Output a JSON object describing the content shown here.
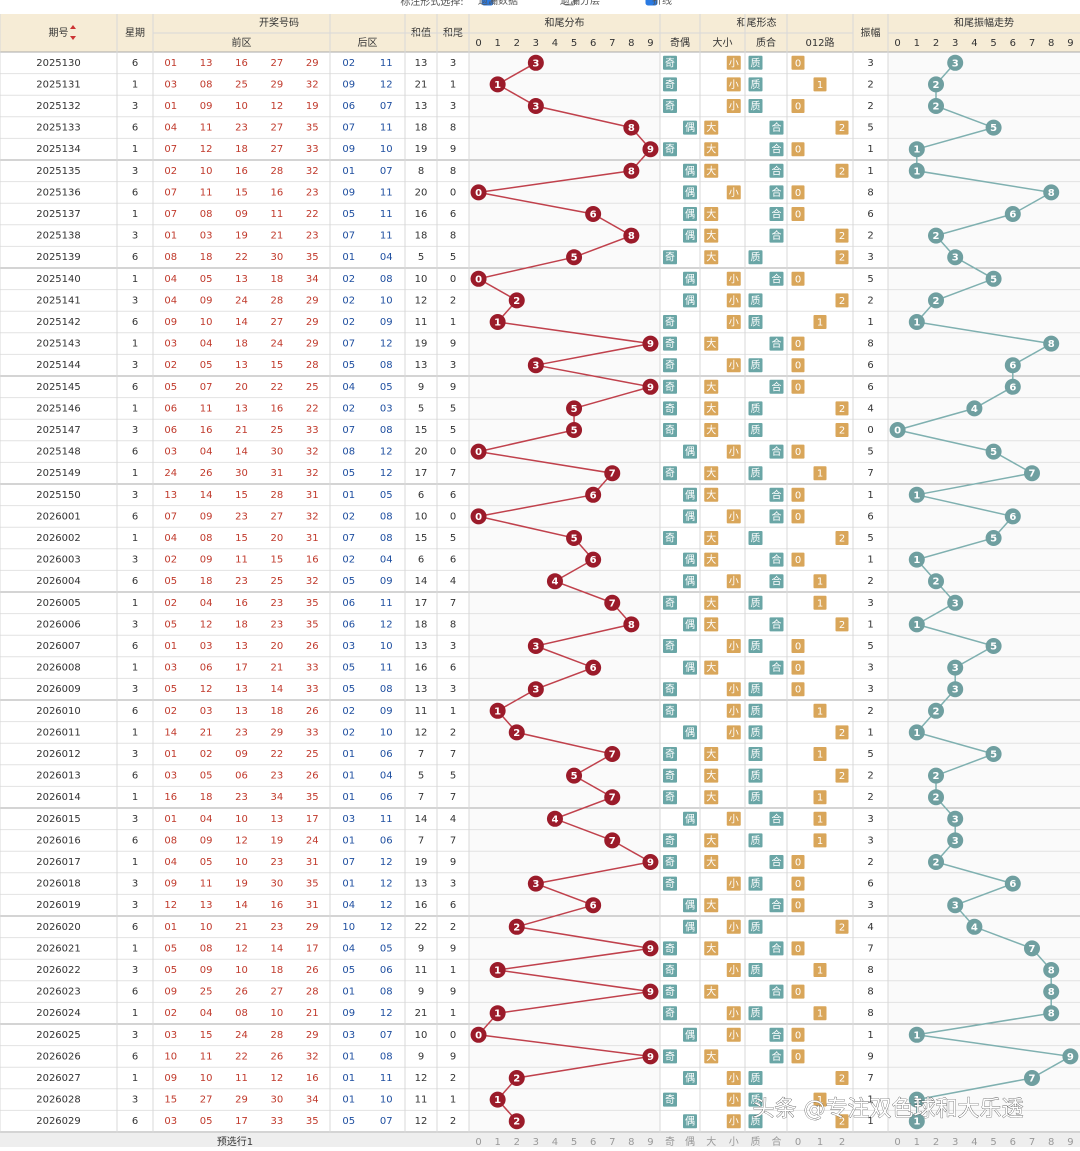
{
  "toolbar": {
    "label": "标注形式选择:",
    "options": [
      "遗漏数据",
      "遗漏分层",
      "折线"
    ],
    "checked": [
      true,
      false,
      true
    ]
  },
  "table": {
    "headers": {
      "issue": "期号",
      "weekday": "星期",
      "draw": "开奖号码",
      "front": "前区",
      "back": "后区",
      "sum": "和值",
      "tail": "和尾",
      "distribution": "和尾分布",
      "shape": "和尾形态",
      "parity": "奇偶",
      "size": "大小",
      "prime": "质合",
      "route": "012路",
      "amp": "振幅",
      "trend": "和尾振幅走势"
    },
    "digits": [
      0,
      1,
      2,
      3,
      4,
      5,
      6,
      7,
      8,
      9
    ],
    "shape_options": {
      "parity": [
        "奇",
        "偶"
      ],
      "size": [
        "大",
        "小"
      ],
      "prime": [
        "质",
        "合"
      ],
      "route": [
        0,
        1,
        2
      ]
    },
    "rows": [
      {
        "issue": "2025130",
        "weekday": 6,
        "front": [
          "01",
          "13",
          "16",
          "27",
          "29"
        ],
        "back": [
          "02",
          "11"
        ],
        "sum": 13,
        "tail": 3,
        "parity": "奇",
        "size": "小",
        "prime": "质",
        "route": 0,
        "amp": 3
      },
      {
        "issue": "2025131",
        "weekday": 1,
        "front": [
          "03",
          "08",
          "25",
          "29",
          "32"
        ],
        "back": [
          "09",
          "12"
        ],
        "sum": 21,
        "tail": 1,
        "parity": "奇",
        "size": "小",
        "prime": "质",
        "route": 1,
        "amp": 2
      },
      {
        "issue": "2025132",
        "weekday": 3,
        "front": [
          "01",
          "09",
          "10",
          "12",
          "19"
        ],
        "back": [
          "06",
          "07"
        ],
        "sum": 13,
        "tail": 3,
        "parity": "奇",
        "size": "小",
        "prime": "质",
        "route": 0,
        "amp": 2
      },
      {
        "issue": "2025133",
        "weekday": 6,
        "front": [
          "04",
          "11",
          "23",
          "27",
          "35"
        ],
        "back": [
          "07",
          "11"
        ],
        "sum": 18,
        "tail": 8,
        "parity": "偶",
        "size": "大",
        "prime": "合",
        "route": 2,
        "amp": 5
      },
      {
        "issue": "2025134",
        "weekday": 1,
        "front": [
          "07",
          "12",
          "18",
          "27",
          "33"
        ],
        "back": [
          "09",
          "10"
        ],
        "sum": 19,
        "tail": 9,
        "parity": "奇",
        "size": "大",
        "prime": "合",
        "route": 0,
        "amp": 1
      },
      {
        "issue": "2025135",
        "weekday": 3,
        "front": [
          "02",
          "10",
          "16",
          "28",
          "32"
        ],
        "back": [
          "01",
          "07"
        ],
        "sum": 8,
        "tail": 8,
        "parity": "偶",
        "size": "大",
        "prime": "合",
        "route": 2,
        "amp": 1
      },
      {
        "issue": "2025136",
        "weekday": 6,
        "front": [
          "07",
          "11",
          "15",
          "16",
          "23"
        ],
        "back": [
          "09",
          "11"
        ],
        "sum": 20,
        "tail": 0,
        "parity": "偶",
        "size": "小",
        "prime": "合",
        "route": 0,
        "amp": 8
      },
      {
        "issue": "2025137",
        "weekday": 1,
        "front": [
          "07",
          "08",
          "09",
          "11",
          "22"
        ],
        "back": [
          "05",
          "11"
        ],
        "sum": 16,
        "tail": 6,
        "parity": "偶",
        "size": "大",
        "prime": "合",
        "route": 0,
        "amp": 6
      },
      {
        "issue": "2025138",
        "weekday": 3,
        "front": [
          "01",
          "03",
          "19",
          "21",
          "23"
        ],
        "back": [
          "07",
          "11"
        ],
        "sum": 18,
        "tail": 8,
        "parity": "偶",
        "size": "大",
        "prime": "合",
        "route": 2,
        "amp": 2
      },
      {
        "issue": "2025139",
        "weekday": 6,
        "front": [
          "08",
          "18",
          "22",
          "30",
          "35"
        ],
        "back": [
          "01",
          "04"
        ],
        "sum": 5,
        "tail": 5,
        "parity": "奇",
        "size": "大",
        "prime": "质",
        "route": 2,
        "amp": 3
      },
      {
        "issue": "2025140",
        "weekday": 1,
        "front": [
          "04",
          "05",
          "13",
          "18",
          "34"
        ],
        "back": [
          "02",
          "08"
        ],
        "sum": 10,
        "tail": 0,
        "parity": "偶",
        "size": "小",
        "prime": "合",
        "route": 0,
        "amp": 5
      },
      {
        "issue": "2025141",
        "weekday": 3,
        "front": [
          "04",
          "09",
          "24",
          "28",
          "29"
        ],
        "back": [
          "02",
          "10"
        ],
        "sum": 12,
        "tail": 2,
        "parity": "偶",
        "size": "小",
        "prime": "质",
        "route": 2,
        "amp": 2
      },
      {
        "issue": "2025142",
        "weekday": 6,
        "front": [
          "09",
          "10",
          "14",
          "27",
          "29"
        ],
        "back": [
          "02",
          "09"
        ],
        "sum": 11,
        "tail": 1,
        "parity": "奇",
        "size": "小",
        "prime": "质",
        "route": 1,
        "amp": 1
      },
      {
        "issue": "2025143",
        "weekday": 1,
        "front": [
          "03",
          "04",
          "18",
          "24",
          "29"
        ],
        "back": [
          "07",
          "12"
        ],
        "sum": 19,
        "tail": 9,
        "parity": "奇",
        "size": "大",
        "prime": "合",
        "route": 0,
        "amp": 8
      },
      {
        "issue": "2025144",
        "weekday": 3,
        "front": [
          "02",
          "05",
          "13",
          "15",
          "28"
        ],
        "back": [
          "05",
          "08"
        ],
        "sum": 13,
        "tail": 3,
        "parity": "奇",
        "size": "小",
        "prime": "质",
        "route": 0,
        "amp": 6
      },
      {
        "issue": "2025145",
        "weekday": 6,
        "front": [
          "05",
          "07",
          "20",
          "22",
          "25"
        ],
        "back": [
          "04",
          "05"
        ],
        "sum": 9,
        "tail": 9,
        "parity": "奇",
        "size": "大",
        "prime": "合",
        "route": 0,
        "amp": 6
      },
      {
        "issue": "2025146",
        "weekday": 1,
        "front": [
          "06",
          "11",
          "13",
          "16",
          "22"
        ],
        "back": [
          "02",
          "03"
        ],
        "sum": 5,
        "tail": 5,
        "parity": "奇",
        "size": "大",
        "prime": "质",
        "route": 2,
        "amp": 4
      },
      {
        "issue": "2025147",
        "weekday": 3,
        "front": [
          "06",
          "16",
          "21",
          "25",
          "33"
        ],
        "back": [
          "07",
          "08"
        ],
        "sum": 15,
        "tail": 5,
        "parity": "奇",
        "size": "大",
        "prime": "质",
        "route": 2,
        "amp": 0
      },
      {
        "issue": "2025148",
        "weekday": 6,
        "front": [
          "03",
          "04",
          "14",
          "30",
          "32"
        ],
        "back": [
          "08",
          "12"
        ],
        "sum": 20,
        "tail": 0,
        "parity": "偶",
        "size": "小",
        "prime": "合",
        "route": 0,
        "amp": 5
      },
      {
        "issue": "2025149",
        "weekday": 1,
        "front": [
          "24",
          "26",
          "30",
          "31",
          "32"
        ],
        "back": [
          "05",
          "12"
        ],
        "sum": 17,
        "tail": 7,
        "parity": "奇",
        "size": "大",
        "prime": "质",
        "route": 1,
        "amp": 7
      },
      {
        "issue": "2025150",
        "weekday": 3,
        "front": [
          "13",
          "14",
          "15",
          "28",
          "31"
        ],
        "back": [
          "01",
          "05"
        ],
        "sum": 6,
        "tail": 6,
        "parity": "偶",
        "size": "大",
        "prime": "合",
        "route": 0,
        "amp": 1
      },
      {
        "issue": "2026001",
        "weekday": 6,
        "front": [
          "07",
          "09",
          "23",
          "27",
          "32"
        ],
        "back": [
          "02",
          "08"
        ],
        "sum": 10,
        "tail": 0,
        "parity": "偶",
        "size": "小",
        "prime": "合",
        "route": 0,
        "amp": 6
      },
      {
        "issue": "2026002",
        "weekday": 1,
        "front": [
          "04",
          "08",
          "15",
          "20",
          "31"
        ],
        "back": [
          "07",
          "08"
        ],
        "sum": 15,
        "tail": 5,
        "parity": "奇",
        "size": "大",
        "prime": "质",
        "route": 2,
        "amp": 5
      },
      {
        "issue": "2026003",
        "weekday": 3,
        "front": [
          "02",
          "09",
          "11",
          "15",
          "16"
        ],
        "back": [
          "02",
          "04"
        ],
        "sum": 6,
        "tail": 6,
        "parity": "偶",
        "size": "大",
        "prime": "合",
        "route": 0,
        "amp": 1
      },
      {
        "issue": "2026004",
        "weekday": 6,
        "front": [
          "05",
          "18",
          "23",
          "25",
          "32"
        ],
        "back": [
          "05",
          "09"
        ],
        "sum": 14,
        "tail": 4,
        "parity": "偶",
        "size": "小",
        "prime": "合",
        "route": 1,
        "amp": 2
      },
      {
        "issue": "2026005",
        "weekday": 1,
        "front": [
          "02",
          "04",
          "16",
          "23",
          "35"
        ],
        "back": [
          "06",
          "11"
        ],
        "sum": 17,
        "tail": 7,
        "parity": "奇",
        "size": "大",
        "prime": "质",
        "route": 1,
        "amp": 3
      },
      {
        "issue": "2026006",
        "weekday": 3,
        "front": [
          "05",
          "12",
          "18",
          "23",
          "35"
        ],
        "back": [
          "06",
          "12"
        ],
        "sum": 18,
        "tail": 8,
        "parity": "偶",
        "size": "大",
        "prime": "合",
        "route": 2,
        "amp": 1
      },
      {
        "issue": "2026007",
        "weekday": 6,
        "front": [
          "01",
          "03",
          "13",
          "20",
          "26"
        ],
        "back": [
          "03",
          "10"
        ],
        "sum": 13,
        "tail": 3,
        "parity": "奇",
        "size": "小",
        "prime": "质",
        "route": 0,
        "amp": 5
      },
      {
        "issue": "2026008",
        "weekday": 1,
        "front": [
          "03",
          "06",
          "17",
          "21",
          "33"
        ],
        "back": [
          "05",
          "11"
        ],
        "sum": 16,
        "tail": 6,
        "parity": "偶",
        "size": "大",
        "prime": "合",
        "route": 0,
        "amp": 3
      },
      {
        "issue": "2026009",
        "weekday": 3,
        "front": [
          "05",
          "12",
          "13",
          "14",
          "33"
        ],
        "back": [
          "05",
          "08"
        ],
        "sum": 13,
        "tail": 3,
        "parity": "奇",
        "size": "小",
        "prime": "质",
        "route": 0,
        "amp": 3
      },
      {
        "issue": "2026010",
        "weekday": 6,
        "front": [
          "02",
          "03",
          "13",
          "18",
          "26"
        ],
        "back": [
          "02",
          "09"
        ],
        "sum": 11,
        "tail": 1,
        "parity": "奇",
        "size": "小",
        "prime": "质",
        "route": 1,
        "amp": 2
      },
      {
        "issue": "2026011",
        "weekday": 1,
        "front": [
          "14",
          "21",
          "23",
          "29",
          "33"
        ],
        "back": [
          "02",
          "10"
        ],
        "sum": 12,
        "tail": 2,
        "parity": "偶",
        "size": "小",
        "prime": "质",
        "route": 2,
        "amp": 1
      },
      {
        "issue": "2026012",
        "weekday": 3,
        "front": [
          "01",
          "02",
          "09",
          "22",
          "25"
        ],
        "back": [
          "01",
          "06"
        ],
        "sum": 7,
        "tail": 7,
        "parity": "奇",
        "size": "大",
        "prime": "质",
        "route": 1,
        "amp": 5
      },
      {
        "issue": "2026013",
        "weekday": 6,
        "front": [
          "03",
          "05",
          "06",
          "23",
          "26"
        ],
        "back": [
          "01",
          "04"
        ],
        "sum": 5,
        "tail": 5,
        "parity": "奇",
        "size": "大",
        "prime": "质",
        "route": 2,
        "amp": 2
      },
      {
        "issue": "2026014",
        "weekday": 1,
        "front": [
          "16",
          "18",
          "23",
          "34",
          "35"
        ],
        "back": [
          "01",
          "06"
        ],
        "sum": 7,
        "tail": 7,
        "parity": "奇",
        "size": "大",
        "prime": "质",
        "route": 1,
        "amp": 2
      },
      {
        "issue": "2026015",
        "weekday": 3,
        "front": [
          "01",
          "04",
          "10",
          "13",
          "17"
        ],
        "back": [
          "03",
          "11"
        ],
        "sum": 14,
        "tail": 4,
        "parity": "偶",
        "size": "小",
        "prime": "合",
        "route": 1,
        "amp": 3
      },
      {
        "issue": "2026016",
        "weekday": 6,
        "front": [
          "08",
          "09",
          "12",
          "19",
          "24"
        ],
        "back": [
          "01",
          "06"
        ],
        "sum": 7,
        "tail": 7,
        "parity": "奇",
        "size": "大",
        "prime": "质",
        "route": 1,
        "amp": 3
      },
      {
        "issue": "2026017",
        "weekday": 1,
        "front": [
          "04",
          "05",
          "10",
          "23",
          "31"
        ],
        "back": [
          "07",
          "12"
        ],
        "sum": 19,
        "tail": 9,
        "parity": "奇",
        "size": "大",
        "prime": "合",
        "route": 0,
        "amp": 2
      },
      {
        "issue": "2026018",
        "weekday": 3,
        "front": [
          "09",
          "11",
          "19",
          "30",
          "35"
        ],
        "back": [
          "01",
          "12"
        ],
        "sum": 13,
        "tail": 3,
        "parity": "奇",
        "size": "小",
        "prime": "质",
        "route": 0,
        "amp": 6
      },
      {
        "issue": "2026019",
        "weekday": 3,
        "front": [
          "12",
          "13",
          "14",
          "16",
          "31"
        ],
        "back": [
          "04",
          "12"
        ],
        "sum": 16,
        "tail": 6,
        "parity": "偶",
        "size": "大",
        "prime": "合",
        "route": 0,
        "amp": 3
      },
      {
        "issue": "2026020",
        "weekday": 6,
        "front": [
          "01",
          "10",
          "21",
          "23",
          "29"
        ],
        "back": [
          "10",
          "12"
        ],
        "sum": 22,
        "tail": 2,
        "parity": "偶",
        "size": "小",
        "prime": "质",
        "route": 2,
        "amp": 4
      },
      {
        "issue": "2026021",
        "weekday": 1,
        "front": [
          "05",
          "08",
          "12",
          "14",
          "17"
        ],
        "back": [
          "04",
          "05"
        ],
        "sum": 9,
        "tail": 9,
        "parity": "奇",
        "size": "大",
        "prime": "合",
        "route": 0,
        "amp": 7
      },
      {
        "issue": "2026022",
        "weekday": 3,
        "front": [
          "05",
          "09",
          "10",
          "18",
          "26"
        ],
        "back": [
          "05",
          "06"
        ],
        "sum": 11,
        "tail": 1,
        "parity": "奇",
        "size": "小",
        "prime": "质",
        "route": 1,
        "amp": 8
      },
      {
        "issue": "2026023",
        "weekday": 6,
        "front": [
          "09",
          "25",
          "26",
          "27",
          "28"
        ],
        "back": [
          "01",
          "08"
        ],
        "sum": 9,
        "tail": 9,
        "parity": "奇",
        "size": "大",
        "prime": "合",
        "route": 0,
        "amp": 8
      },
      {
        "issue": "2026024",
        "weekday": 1,
        "front": [
          "02",
          "04",
          "08",
          "10",
          "21"
        ],
        "back": [
          "09",
          "12"
        ],
        "sum": 21,
        "tail": 1,
        "parity": "奇",
        "size": "小",
        "prime": "质",
        "route": 1,
        "amp": 8
      },
      {
        "issue": "2026025",
        "weekday": 3,
        "front": [
          "03",
          "15",
          "24",
          "28",
          "29"
        ],
        "back": [
          "03",
          "07"
        ],
        "sum": 10,
        "tail": 0,
        "parity": "偶",
        "size": "小",
        "prime": "合",
        "route": 0,
        "amp": 1
      },
      {
        "issue": "2026026",
        "weekday": 6,
        "front": [
          "10",
          "11",
          "22",
          "26",
          "32"
        ],
        "back": [
          "01",
          "08"
        ],
        "sum": 9,
        "tail": 9,
        "parity": "奇",
        "size": "大",
        "prime": "合",
        "route": 0,
        "amp": 9
      },
      {
        "issue": "2026027",
        "weekday": 1,
        "front": [
          "09",
          "10",
          "11",
          "12",
          "16"
        ],
        "back": [
          "01",
          "11"
        ],
        "sum": 12,
        "tail": 2,
        "parity": "偶",
        "size": "小",
        "prime": "质",
        "route": 2,
        "amp": 7
      },
      {
        "issue": "2026028",
        "weekday": 3,
        "front": [
          "15",
          "27",
          "29",
          "30",
          "34"
        ],
        "back": [
          "01",
          "10"
        ],
        "sum": 11,
        "tail": 1,
        "parity": "奇",
        "size": "小",
        "prime": "质",
        "route": 1,
        "amp": 1
      },
      {
        "issue": "2026029",
        "weekday": 6,
        "front": [
          "03",
          "05",
          "17",
          "33",
          "35"
        ],
        "back": [
          "05",
          "07"
        ],
        "sum": 12,
        "tail": 2,
        "parity": "偶",
        "size": "小",
        "prime": "质",
        "route": 2,
        "amp": 1
      }
    ],
    "footer": "预选行1"
  },
  "watermark": "头条 @专注双色球和大乐透"
}
